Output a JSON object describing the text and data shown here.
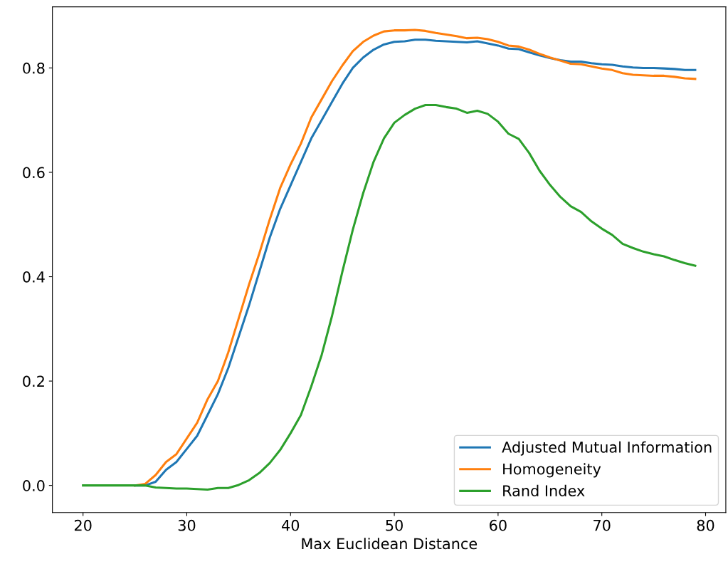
{
  "chart_data": {
    "type": "line",
    "xlabel": "Max Euclidean Distance",
    "x": [
      20,
      21,
      22,
      23,
      24,
      25,
      26,
      27,
      28,
      29,
      30,
      31,
      32,
      33,
      34,
      35,
      36,
      37,
      38,
      39,
      40,
      41,
      42,
      43,
      44,
      45,
      46,
      47,
      48,
      49,
      50,
      51,
      52,
      53,
      54,
      55,
      56,
      57,
      58,
      59,
      60,
      61,
      62,
      63,
      64,
      65,
      66,
      67,
      68,
      69,
      70,
      71,
      72,
      73,
      74,
      75,
      76,
      77,
      78,
      79
    ],
    "series": [
      {
        "name": "Adjusted Mutual Information",
        "color": "#1f77b4",
        "values": [
          null,
          null,
          null,
          null,
          null,
          0,
          0,
          0.007,
          0.03,
          0.045,
          0.07,
          0.095,
          0.135,
          0.175,
          0.225,
          0.285,
          0.345,
          0.41,
          0.475,
          0.53,
          0.575,
          0.62,
          0.665,
          0.7,
          0.735,
          0.77,
          0.8,
          0.82,
          0.835,
          0.845,
          0.85,
          0.851,
          0.854,
          0.854,
          0.852,
          0.851,
          0.85,
          0.849,
          0.851,
          0.847,
          0.843,
          0.837,
          0.836,
          0.83,
          0.824,
          0.819,
          0.815,
          0.812,
          0.812,
          0.809,
          0.807,
          0.806,
          0.803,
          0.801,
          0.8,
          0.8,
          0.799,
          0.798,
          0.796,
          0.796
        ]
      },
      {
        "name": "Homogeneity",
        "color": "#ff7f0e",
        "values": [
          null,
          null,
          null,
          null,
          null,
          0,
          0.003,
          0.02,
          0.045,
          0.06,
          0.09,
          0.12,
          0.165,
          0.2,
          0.255,
          0.32,
          0.385,
          0.445,
          0.51,
          0.57,
          0.615,
          0.655,
          0.705,
          0.74,
          0.775,
          0.805,
          0.832,
          0.85,
          0.862,
          0.87,
          0.872,
          0.872,
          0.873,
          0.871,
          0.867,
          0.864,
          0.861,
          0.857,
          0.858,
          0.855,
          0.85,
          0.843,
          0.841,
          0.835,
          0.827,
          0.82,
          0.814,
          0.808,
          0.807,
          0.803,
          0.799,
          0.796,
          0.79,
          0.787,
          0.786,
          0.785,
          0.785,
          0.783,
          0.78,
          0.779
        ]
      },
      {
        "name": "Rand Index",
        "color": "#2ca02c",
        "values": [
          0,
          0,
          0,
          0,
          0,
          0,
          0,
          -0.004,
          -0.005,
          -0.006,
          -0.006,
          -0.007,
          -0.008,
          -0.005,
          -0.005,
          0.001,
          0.01,
          0.024,
          0.043,
          0.068,
          0.1,
          0.135,
          0.19,
          0.25,
          0.325,
          0.41,
          0.49,
          0.56,
          0.62,
          0.665,
          0.695,
          0.71,
          0.722,
          0.729,
          0.729,
          0.725,
          0.722,
          0.714,
          0.718,
          0.712,
          0.697,
          0.674,
          0.664,
          0.637,
          0.603,
          0.576,
          0.553,
          0.535,
          0.524,
          0.506,
          0.492,
          0.48,
          0.463,
          0.455,
          0.448,
          0.443,
          0.439,
          0.432,
          0.426,
          0.421
        ]
      }
    ],
    "xlim": [
      17.05,
      81.95
    ],
    "ylim": [
      -0.052,
      0.917
    ],
    "xticks": [
      20,
      30,
      40,
      50,
      60,
      70,
      80
    ],
    "yticks": [
      {
        "value": 0,
        "label": "0.0"
      },
      {
        "value": 0.2,
        "label": "0.2"
      },
      {
        "value": 0.4,
        "label": "0.4"
      },
      {
        "value": 0.6,
        "label": "0.6"
      },
      {
        "value": 0.8,
        "label": "0.8"
      }
    ],
    "grid": false,
    "legend": "bottom right",
    "marker": "none",
    "line_style": "solid"
  }
}
